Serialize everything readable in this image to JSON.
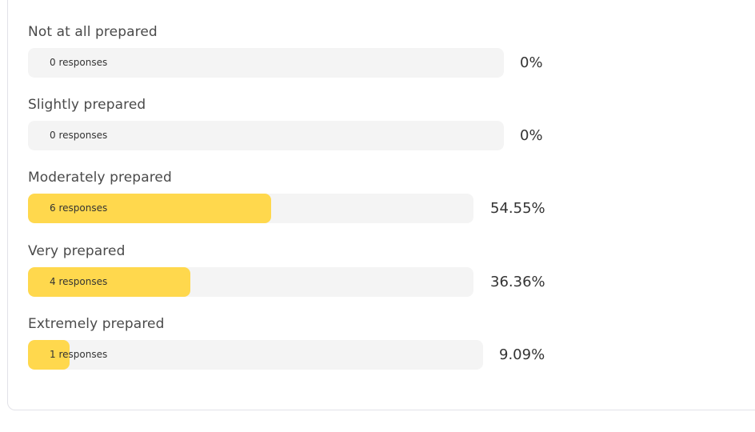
{
  "results": [
    {
      "label": "Not at all prepared",
      "count_text": "0 responses",
      "percent_text": "0%",
      "fraction": 0.0
    },
    {
      "label": "Slightly prepared",
      "count_text": "0 responses",
      "percent_text": "0%",
      "fraction": 0.0
    },
    {
      "label": "Moderately prepared",
      "count_text": "6 responses",
      "percent_text": "54.55%",
      "fraction": 0.5455
    },
    {
      "label": "Very prepared",
      "count_text": "4 responses",
      "percent_text": "36.36%",
      "fraction": 0.3636
    },
    {
      "label": "Extremely prepared",
      "count_text": "1 responses",
      "percent_text": "9.09%",
      "fraction": 0.0909
    }
  ],
  "colors": {
    "fill": "#ffd84d",
    "track": "#f4f4f4",
    "label_text": "#4a4a4a",
    "value_text": "#333333"
  }
}
